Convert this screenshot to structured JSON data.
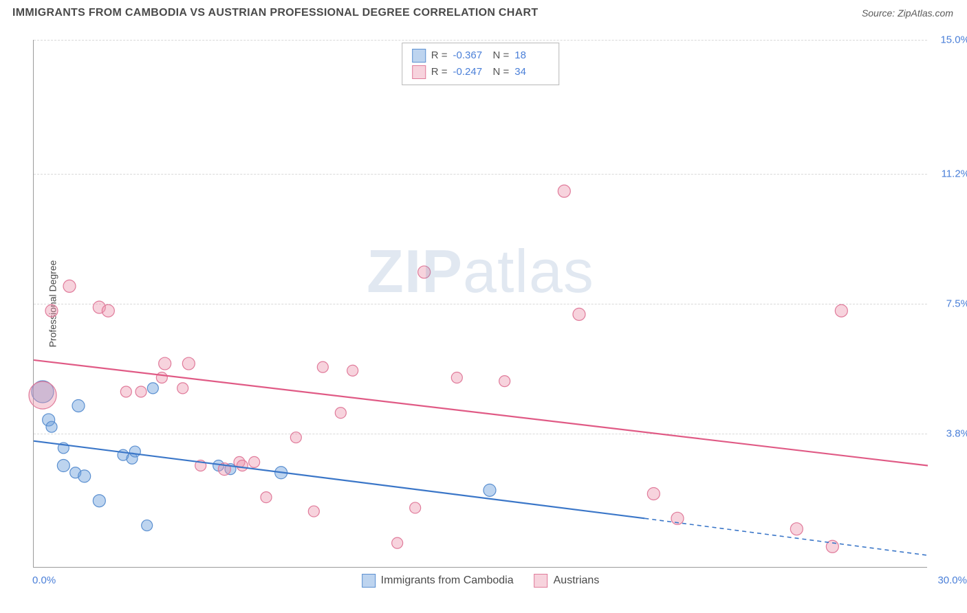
{
  "header": {
    "title": "IMMIGRANTS FROM CAMBODIA VS AUSTRIAN PROFESSIONAL DEGREE CORRELATION CHART",
    "source": "Source: ZipAtlas.com"
  },
  "watermark": {
    "zip": "ZIP",
    "atlas": "atlas"
  },
  "chart": {
    "type": "scatter",
    "xlim": [
      0,
      30
    ],
    "ylim": [
      0,
      15
    ],
    "background_color": "#ffffff",
    "grid_color": "#d8d8d8",
    "axis_color": "#9a9a9a",
    "yticks": [
      {
        "v": 3.8,
        "label": "3.8%"
      },
      {
        "v": 7.5,
        "label": "7.5%"
      },
      {
        "v": 11.2,
        "label": "11.2%"
      },
      {
        "v": 15.0,
        "label": "15.0%"
      }
    ],
    "xticks": [
      {
        "v": 0.0,
        "label": "0.0%",
        "align": "left"
      },
      {
        "v": 30.0,
        "label": "30.0%",
        "align": "right"
      }
    ],
    "ylabel": "Professional Degree",
    "tick_color": "#4a7fd8",
    "tick_fontsize": 15,
    "label_fontsize": 14,
    "series": [
      {
        "name": "Immigrants from Cambodia",
        "fill": "rgba(108,160,220,0.45)",
        "stroke": "#5a8fd0",
        "line_color": "#3a76c8",
        "R": "-0.367",
        "N": "18",
        "trend": {
          "x1": 0,
          "y1": 3.6,
          "x2": 20.5,
          "y2": 1.4,
          "x2_ext": 30,
          "y2_ext": 0.35
        },
        "points": [
          {
            "x": 0.3,
            "y": 5.0,
            "r": 16
          },
          {
            "x": 0.5,
            "y": 4.2,
            "r": 9
          },
          {
            "x": 0.6,
            "y": 4.0,
            "r": 8
          },
          {
            "x": 1.5,
            "y": 4.6,
            "r": 9
          },
          {
            "x": 1.0,
            "y": 3.4,
            "r": 8
          },
          {
            "x": 1.0,
            "y": 2.9,
            "r": 9
          },
          {
            "x": 1.4,
            "y": 2.7,
            "r": 8
          },
          {
            "x": 1.7,
            "y": 2.6,
            "r": 9
          },
          {
            "x": 2.2,
            "y": 1.9,
            "r": 9
          },
          {
            "x": 3.0,
            "y": 3.2,
            "r": 8
          },
          {
            "x": 3.3,
            "y": 3.1,
            "r": 8
          },
          {
            "x": 3.4,
            "y": 3.3,
            "r": 8
          },
          {
            "x": 3.8,
            "y": 1.2,
            "r": 8
          },
          {
            "x": 4.0,
            "y": 5.1,
            "r": 8
          },
          {
            "x": 6.2,
            "y": 2.9,
            "r": 8
          },
          {
            "x": 6.6,
            "y": 2.8,
            "r": 8
          },
          {
            "x": 8.3,
            "y": 2.7,
            "r": 9
          },
          {
            "x": 15.3,
            "y": 2.2,
            "r": 9
          }
        ]
      },
      {
        "name": "Austrians",
        "fill": "rgba(235,145,170,0.40)",
        "stroke": "#e07a9a",
        "line_color": "#e05a85",
        "R": "-0.247",
        "N": "34",
        "trend": {
          "x1": 0,
          "y1": 5.9,
          "x2": 30,
          "y2": 2.9
        },
        "points": [
          {
            "x": 0.3,
            "y": 4.9,
            "r": 20
          },
          {
            "x": 0.6,
            "y": 7.3,
            "r": 9
          },
          {
            "x": 1.2,
            "y": 8.0,
            "r": 9
          },
          {
            "x": 2.2,
            "y": 7.4,
            "r": 9
          },
          {
            "x": 2.5,
            "y": 7.3,
            "r": 9
          },
          {
            "x": 3.1,
            "y": 5.0,
            "r": 8
          },
          {
            "x": 3.6,
            "y": 5.0,
            "r": 8
          },
          {
            "x": 4.3,
            "y": 5.4,
            "r": 8
          },
          {
            "x": 4.4,
            "y": 5.8,
            "r": 9
          },
          {
            "x": 5.0,
            "y": 5.1,
            "r": 8
          },
          {
            "x": 5.2,
            "y": 5.8,
            "r": 9
          },
          {
            "x": 5.6,
            "y": 2.9,
            "r": 8
          },
          {
            "x": 6.4,
            "y": 2.8,
            "r": 9
          },
          {
            "x": 6.9,
            "y": 3.0,
            "r": 8
          },
          {
            "x": 7.4,
            "y": 3.0,
            "r": 8
          },
          {
            "x": 7.8,
            "y": 2.0,
            "r": 8
          },
          {
            "x": 8.8,
            "y": 3.7,
            "r": 8
          },
          {
            "x": 9.4,
            "y": 1.6,
            "r": 8
          },
          {
            "x": 9.7,
            "y": 5.7,
            "r": 8
          },
          {
            "x": 10.3,
            "y": 4.4,
            "r": 8
          },
          {
            "x": 10.7,
            "y": 5.6,
            "r": 8
          },
          {
            "x": 12.2,
            "y": 0.7,
            "r": 8
          },
          {
            "x": 12.8,
            "y": 1.7,
            "r": 8
          },
          {
            "x": 13.1,
            "y": 8.4,
            "r": 9
          },
          {
            "x": 14.2,
            "y": 5.4,
            "r": 8
          },
          {
            "x": 15.8,
            "y": 5.3,
            "r": 8
          },
          {
            "x": 17.8,
            "y": 10.7,
            "r": 9
          },
          {
            "x": 18.3,
            "y": 7.2,
            "r": 9
          },
          {
            "x": 20.8,
            "y": 2.1,
            "r": 9
          },
          {
            "x": 21.6,
            "y": 1.4,
            "r": 9
          },
          {
            "x": 25.6,
            "y": 1.1,
            "r": 9
          },
          {
            "x": 26.8,
            "y": 0.6,
            "r": 9
          },
          {
            "x": 27.1,
            "y": 7.3,
            "r": 9
          },
          {
            "x": 7.0,
            "y": 2.9,
            "r": 8
          }
        ]
      }
    ],
    "legend_top": {
      "R_label": "R = ",
      "N_label": "N = "
    },
    "legend_bottom_swatch_border": "#888888"
  }
}
